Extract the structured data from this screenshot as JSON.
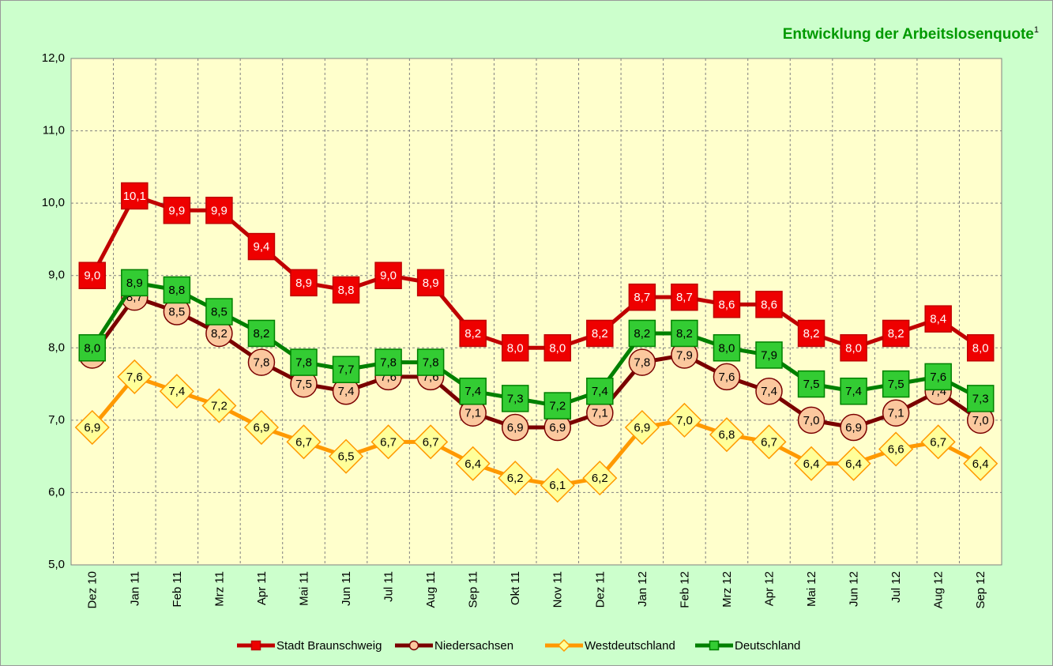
{
  "chart_data": {
    "type": "line",
    "title": "Entwicklung der Arbeitslosenquote",
    "title_superscript": "1",
    "categories": [
      "Dez 10",
      "Jan 11",
      "Feb 11",
      "Mrz 11",
      "Apr 11",
      "Mai 11",
      "Jun 11",
      "Jul 11",
      "Aug 11",
      "Sep 11",
      "Okt 11",
      "Nov 11",
      "Dez 11",
      "Jan 12",
      "Feb 12",
      "Mrz 12",
      "Apr 12",
      "Mai 12",
      "Jun 12",
      "Jul 12",
      "Aug 12",
      "Sep 12"
    ],
    "ylim": [
      5,
      12
    ],
    "yticks": [
      {
        "value": 5,
        "label": "5,0"
      },
      {
        "value": 6,
        "label": "6,0"
      },
      {
        "value": 7,
        "label": "7,0"
      },
      {
        "value": 8,
        "label": "8,0"
      },
      {
        "value": 9,
        "label": "9,0"
      },
      {
        "value": 10,
        "label": "10,0"
      },
      {
        "value": 11,
        "label": "11,0"
      },
      {
        "value": 12,
        "label": "12,0"
      }
    ],
    "grid": true,
    "legend": "bottom",
    "series": [
      {
        "name": "Stadt Braunschweig",
        "color": "#c00000",
        "marker": "square",
        "marker_fill": "#ee0000",
        "label_color": "#ffffff",
        "values": [
          9.0,
          10.1,
          9.9,
          9.9,
          9.4,
          8.9,
          8.8,
          9.0,
          8.9,
          8.2,
          8.0,
          8.0,
          8.2,
          8.7,
          8.7,
          8.6,
          8.6,
          8.2,
          8.0,
          8.2,
          8.4,
          8.0
        ],
        "value_labels": [
          "9,0",
          "10,1",
          "9,9",
          "9,9",
          "9,4",
          "8,9",
          "8,8",
          "9,0",
          "8,9",
          "8,2",
          "8,0",
          "8,0",
          "8,2",
          "8,7",
          "8,7",
          "8,6",
          "8,6",
          "8,2",
          "8,0",
          "8,2",
          "8,4",
          "8,0"
        ]
      },
      {
        "name": "Niedersachsen",
        "color": "#7a0000",
        "marker": "circle",
        "marker_fill": "#fbc89e",
        "label_color": "#000000",
        "values": [
          7.9,
          8.7,
          8.5,
          8.2,
          7.8,
          7.5,
          7.4,
          7.6,
          7.6,
          7.1,
          6.9,
          6.9,
          7.1,
          7.8,
          7.9,
          7.6,
          7.4,
          7.0,
          6.9,
          7.1,
          7.4,
          7.0
        ],
        "value_labels": [
          "7,9",
          "8,7",
          "8,5",
          "8,2",
          "7,8",
          "7,5",
          "7,4",
          "7,6",
          "7,6",
          "7,1",
          "6,9",
          "6,9",
          "7,1",
          "7,8",
          "7,9",
          "7,6",
          "7,4",
          "7,0",
          "6,9",
          "7,1",
          "7,4",
          "7,0"
        ]
      },
      {
        "name": "Westdeutschland",
        "color": "#ff9900",
        "marker": "diamond",
        "marker_fill": "#ffff99",
        "label_color": "#000000",
        "values": [
          6.9,
          7.6,
          7.4,
          7.2,
          6.9,
          6.7,
          6.5,
          6.7,
          6.7,
          6.4,
          6.2,
          6.1,
          6.2,
          6.9,
          7.0,
          6.8,
          6.7,
          6.4,
          6.4,
          6.6,
          6.7,
          6.4
        ],
        "value_labels": [
          "6,9",
          "7,6",
          "7,4",
          "7,2",
          "6,9",
          "6,7",
          "6,5",
          "6,7",
          "6,7",
          "6,4",
          "6,2",
          "6,1",
          "6,2",
          "6,9",
          "7,0",
          "6,8",
          "6,7",
          "6,4",
          "6,4",
          "6,6",
          "6,7",
          "6,4"
        ]
      },
      {
        "name": "Deutschland",
        "color": "#008000",
        "marker": "square",
        "marker_fill": "#33cc33",
        "label_color": "#000000",
        "values": [
          8.0,
          8.9,
          8.8,
          8.5,
          8.2,
          7.8,
          7.7,
          7.8,
          7.8,
          7.4,
          7.3,
          7.2,
          7.4,
          8.2,
          8.2,
          8.0,
          7.9,
          7.5,
          7.4,
          7.5,
          7.6,
          7.3
        ],
        "value_labels": [
          "8,0",
          "8,9",
          "8,8",
          "8,5",
          "8,2",
          "7,8",
          "7,7",
          "7,8",
          "7,8",
          "7,4",
          "7,3",
          "7,2",
          "7,4",
          "8,2",
          "8,2",
          "8,0",
          "7,9",
          "7,5",
          "7,4",
          "7,5",
          "7,6",
          "7,3"
        ]
      }
    ]
  }
}
